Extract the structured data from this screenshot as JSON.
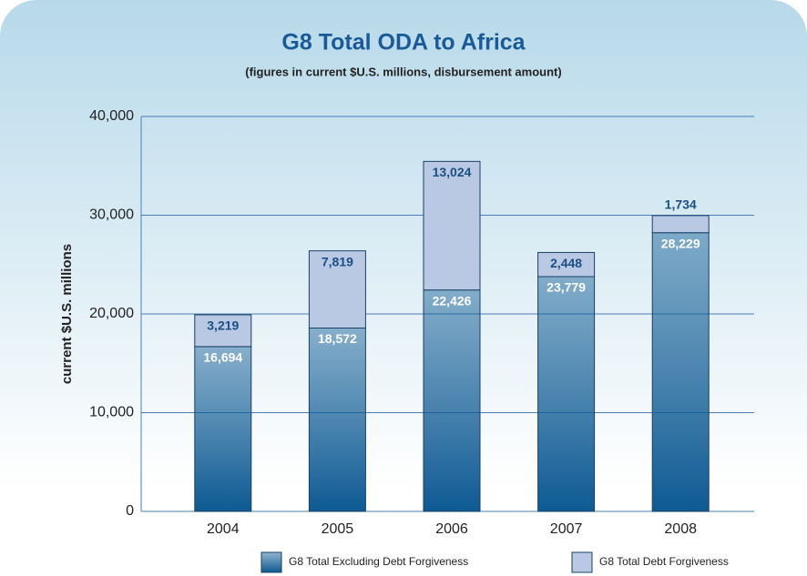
{
  "chart_data": {
    "type": "stacked_bar",
    "title": "G8 Total ODA to Africa",
    "subtitle": "(figures in current $U.S. millions, disbursement amount)",
    "y_label": "current $U.S. millions",
    "categories": [
      "2004",
      "2005",
      "2006",
      "2007",
      "2008"
    ],
    "series": [
      {
        "name": "G8 Total Excluding Debt Forgiveness",
        "color": "#0d5a93",
        "values": [
          16694,
          18572,
          22426,
          23779,
          28229
        ],
        "value_labels": [
          "16,694",
          "18,572",
          "22,426",
          "23,779",
          "28,229"
        ]
      },
      {
        "name": "G8 Total Debt Forgiveness",
        "color": "#b9c9e3",
        "values": [
          3219,
          7819,
          13024,
          2448,
          1734
        ],
        "value_labels": [
          "3,219",
          "7,819",
          "13,024",
          "2,448",
          "1,734"
        ]
      }
    ],
    "ylim": [
      0,
      40000
    ],
    "yticks": [
      0,
      {
        "value": 10000,
        "label": "10,000"
      },
      {
        "value": 20000,
        "label": "20,000"
      },
      {
        "value": 30000,
        "label": "30,000"
      },
      {
        "value": 40000,
        "label": "40,000"
      }
    ],
    "grid": true
  }
}
